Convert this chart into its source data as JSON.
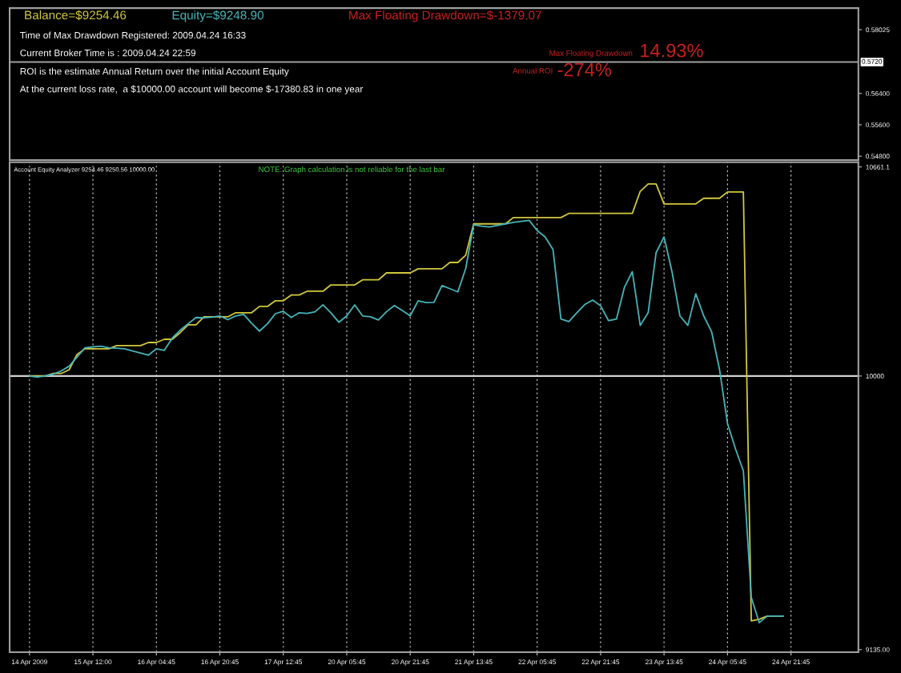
{
  "chart_data": [
    {
      "type": "line",
      "categories": [
        null,
        null,
        null,
        null,
        null,
        null,
        null,
        null,
        null,
        null,
        null,
        null,
        null,
        null,
        null,
        null,
        null,
        null,
        null,
        null,
        null,
        null,
        null,
        null,
        null,
        null,
        null,
        null,
        null,
        null,
        null,
        null,
        null,
        null,
        null,
        null,
        null,
        null,
        null,
        null,
        null,
        null,
        null,
        null,
        null,
        null,
        null,
        null,
        null,
        null,
        null,
        null,
        null,
        null,
        null,
        null,
        null,
        null,
        null,
        null,
        null,
        null,
        null,
        null,
        null,
        null,
        null,
        null,
        null,
        null,
        null,
        null,
        null,
        null,
        null,
        null,
        null,
        null,
        null,
        null,
        null,
        null,
        null,
        null,
        null,
        null,
        null,
        null,
        null,
        null,
        null,
        null,
        null,
        null,
        null,
        null,
        null,
        null,
        null,
        null,
        null,
        null,
        null,
        null,
        null,
        null,
        null
      ],
      "annotations": [
        "Balance=$9254.46",
        "Equity=$9248.90",
        "Max Floating Drawdown=$-1379.07",
        "Time of Max Drawdown Registered: 2009.04.24 16:33",
        "Current Broker Time is : 2009.04.24 22:59",
        "ROI is the estimate Annual Return over the initial Account Equity",
        "At the current loss rate,  a $10000.00 account will become $-17380.83 in one year",
        "Max Floating Drawdown",
        "14.93%",
        "Annual ROI",
        "-274%"
      ],
      "ylim": [
        0.54698,
        0.58576
      ],
      "yticks": [
        0.58025,
        {
          "value": 0.564,
          "label": "0.56400"
        },
        {
          "value": 0.556,
          "label": "0.55600"
        },
        {
          "value": 0.548,
          "label": "0.54800"
        }
      ],
      "ref_lines": [
        {
          "axis": "y",
          "value": 0.572,
          "label": "0.5720",
          "color": "#a0a0a0"
        }
      ]
    },
    {
      "type": "line",
      "annotations": [
        "Account Equity Analyzer 9254.46 9250.56 10000.00",
        "NOTE: Graph calculation is not reliable for the last bar"
      ],
      "categories": [
        null,
        null,
        "14 Apr 2009",
        null,
        null,
        null,
        null,
        null,
        null,
        null,
        "15 Apr 12:00",
        null,
        null,
        null,
        null,
        null,
        null,
        null,
        "16 Apr 04:45",
        null,
        null,
        null,
        null,
        null,
        null,
        null,
        "16 Apr 20:45",
        null,
        null,
        null,
        null,
        null,
        null,
        null,
        "17 Apr 12:45",
        null,
        null,
        null,
        null,
        null,
        null,
        null,
        "20 Apr 05:45",
        null,
        null,
        null,
        null,
        null,
        null,
        null,
        "20 Apr 21:45",
        null,
        null,
        null,
        null,
        null,
        null,
        null,
        "21 Apr 13:45",
        null,
        null,
        null,
        null,
        null,
        null,
        null,
        "22 Apr 05:45",
        null,
        null,
        null,
        null,
        null,
        null,
        null,
        "22 Apr 21:45",
        null,
        null,
        null,
        null,
        null,
        null,
        null,
        "23 Apr 13:45",
        null,
        null,
        null,
        null,
        null,
        null,
        null,
        "24 Apr 05:45",
        null,
        null,
        null,
        null,
        null,
        null,
        null,
        "24 Apr 21:45",
        null,
        null,
        null,
        null,
        null,
        null,
        null,
        null
      ],
      "series": [
        {
          "color": "#d2c83c",
          "values": [
            null,
            null,
            10000,
            10000,
            10000,
            10008,
            10008,
            10020,
            10068,
            10086,
            10086,
            10086,
            10086,
            10096,
            10096,
            10096,
            10096,
            10106,
            10106,
            10116,
            10116,
            10137,
            10162,
            10162,
            10187,
            10187,
            10187,
            10187,
            10200,
            10200,
            10200,
            10220,
            10220,
            10238,
            10238,
            10256,
            10256,
            10268,
            10268,
            10268,
            10288,
            10288,
            10288,
            10288,
            10304,
            10304,
            10304,
            10326,
            10326,
            10326,
            10326,
            10339,
            10339,
            10339,
            10339,
            10359,
            10359,
            10382,
            10481,
            10481,
            10481,
            10481,
            10481,
            10501,
            10501,
            10501,
            10501,
            10501,
            10501,
            10501,
            10514,
            10514,
            10514,
            10514,
            10514,
            10514,
            10514,
            10514,
            10514,
            10584,
            10607,
            10607,
            10544,
            10544,
            10544,
            10544,
            10544,
            10562,
            10562,
            10562,
            10582,
            10582,
            10582,
            9226,
            9231,
            9241,
            9241,
            9241,
            null,
            null,
            null,
            null,
            null,
            null,
            null,
            null,
            null
          ]
        },
        {
          "color": "#46b4b9",
          "values": [
            null,
            null,
            10000,
            9997,
            10000,
            10006,
            10016,
            10031,
            10060,
            10089,
            10092,
            10094,
            10089,
            10088,
            10086,
            10079,
            10073,
            10066,
            10086,
            10081,
            10120,
            10145,
            10165,
            10185,
            10184,
            10186,
            10190,
            10178,
            10190,
            10195,
            10167,
            10142,
            10165,
            10197,
            10205,
            10185,
            10200,
            10198,
            10203,
            10225,
            10200,
            10170,
            10190,
            10225,
            10190,
            10187,
            10177,
            10203,
            10223,
            10207,
            10190,
            10238,
            10232,
            10233,
            10286,
            10276,
            10266,
            10340,
            10478,
            10474,
            10471,
            10476,
            10481,
            10486,
            10489,
            10492,
            10460,
            10440,
            10400,
            10180,
            10172,
            10200,
            10226,
            10240,
            10222,
            10175,
            10180,
            10280,
            10330,
            10160,
            10200,
            10390,
            10440,
            10330,
            10190,
            10160,
            10260,
            10190,
            10140,
            10020,
            9850,
            9770,
            9700,
            9300,
            9220,
            9241,
            9241,
            9241,
            null,
            null,
            null,
            null,
            null,
            null,
            null,
            null,
            null
          ]
        }
      ],
      "ylim": [
        9127,
        10676
      ],
      "yticks": [
        10661.1,
        10000,
        {
          "value": 9135,
          "label": "9135.00"
        }
      ],
      "ref_lines": [
        {
          "axis": "y",
          "value": 10000,
          "color": "#d0d0d0"
        }
      ],
      "grid": "x"
    }
  ]
}
